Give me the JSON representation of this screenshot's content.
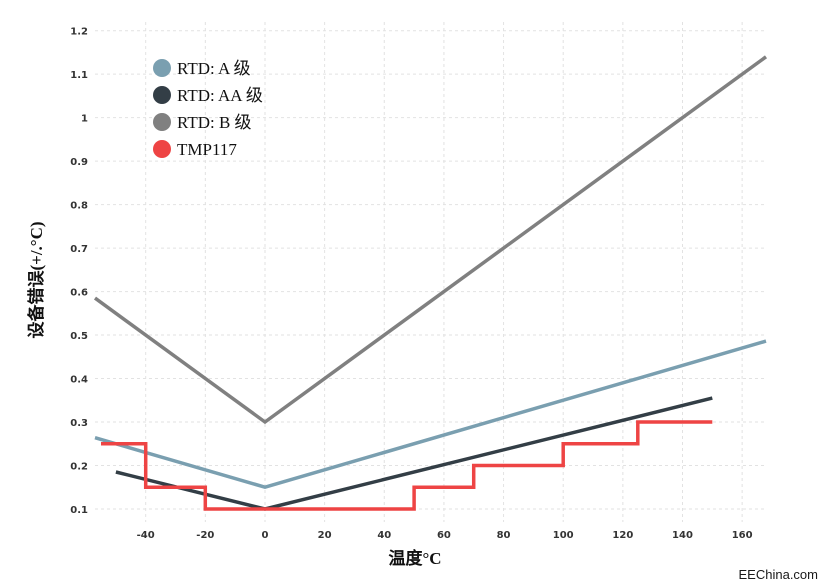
{
  "chart_data": {
    "type": "line",
    "xlabel": "温度°C",
    "ylabel": "设备错误(+/.°C)",
    "xlim": [
      -57,
      168
    ],
    "ylim": [
      0.07,
      1.22
    ],
    "x_ticks": [
      -40,
      -20,
      0,
      20,
      40,
      60,
      80,
      100,
      120,
      140,
      160
    ],
    "y_ticks": [
      0.1,
      0.2,
      0.3,
      0.4,
      0.5,
      0.6,
      0.7,
      0.8,
      0.9,
      1,
      1.1,
      1.2
    ],
    "x_tick_labels": [
      "-40",
      "-20",
      "0",
      "20",
      "40",
      "60",
      "80",
      "100",
      "120",
      "140",
      "160"
    ],
    "y_tick_labels": [
      "0.1",
      "0.2",
      "0.3",
      "0.4",
      "0.5",
      "0.6",
      "0.7",
      "0.8",
      "0.9",
      "1",
      "1.1",
      "1.2"
    ],
    "grid": true,
    "legend_position": "top-left",
    "series": [
      {
        "name": "RTD: A 级",
        "color": "#7a9fb0",
        "step": false,
        "x": [
          -57,
          0,
          168
        ],
        "y": [
          0.264,
          0.15,
          0.486
        ]
      },
      {
        "name": "RTD: AA 级",
        "color": "#333e46",
        "step": false,
        "x": [
          -50,
          0,
          150
        ],
        "y": [
          0.185,
          0.1,
          0.355
        ]
      },
      {
        "name": "RTD: B 级",
        "color": "#808080",
        "step": false,
        "x": [
          -57,
          0,
          168
        ],
        "y": [
          0.585,
          0.3,
          1.14
        ]
      },
      {
        "name": "TMP117",
        "color": "#ee4444",
        "step": true,
        "x": [
          -55,
          -40,
          -40,
          -20,
          -20,
          50,
          50,
          70,
          70,
          100,
          100,
          125,
          125,
          150
        ],
        "y": [
          0.25,
          0.25,
          0.15,
          0.15,
          0.1,
          0.1,
          0.15,
          0.15,
          0.2,
          0.2,
          0.25,
          0.25,
          0.3,
          0.3
        ]
      }
    ]
  },
  "watermark": "EEChina.com"
}
